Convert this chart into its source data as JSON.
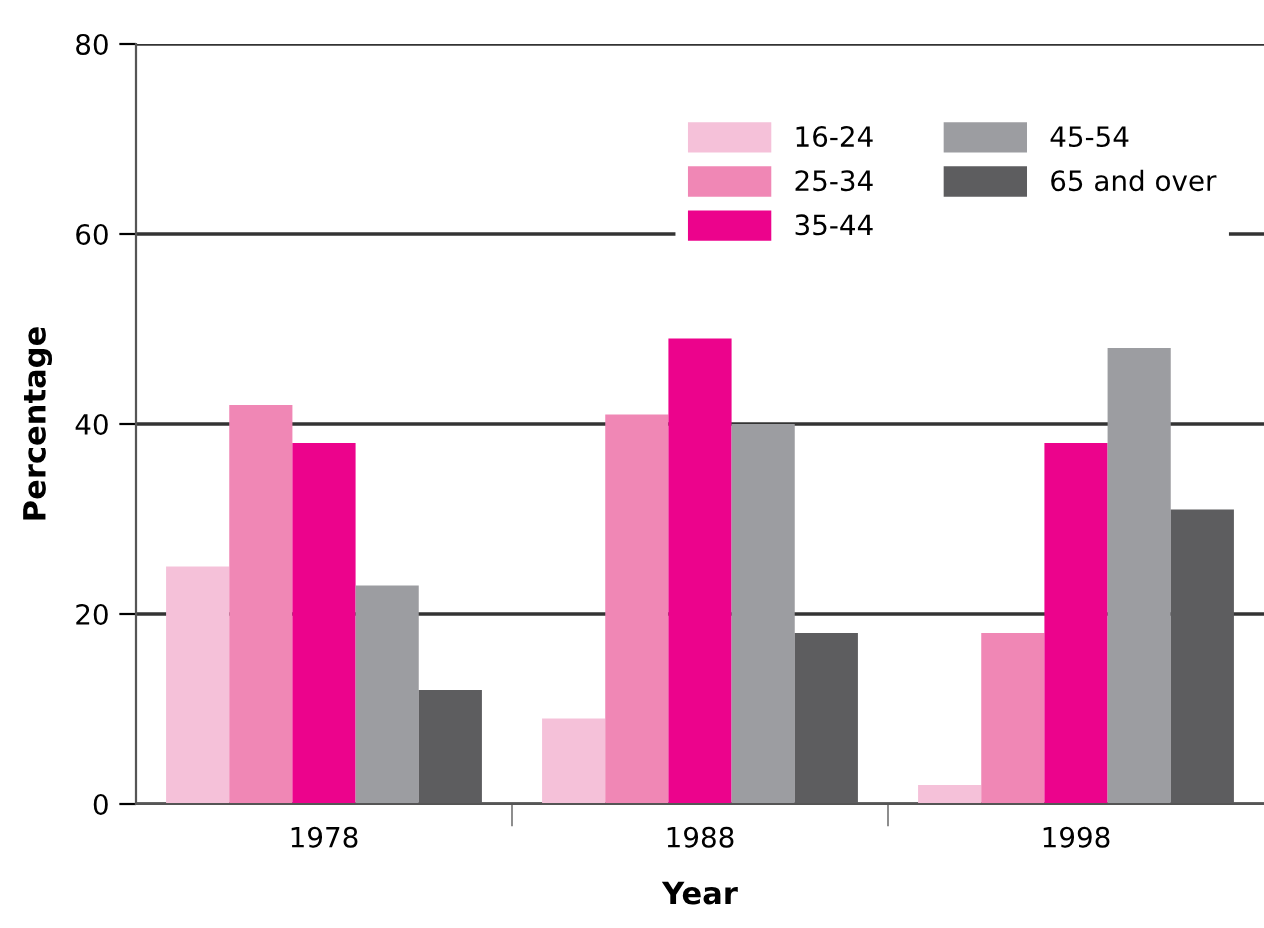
{
  "chart_data": {
    "type": "bar",
    "xlabel": "Year",
    "ylabel": "Percentage",
    "categories": [
      "1978",
      "1988",
      "1998"
    ],
    "series": [
      {
        "name": "16-24",
        "color": "#f5c1d9",
        "values": [
          25,
          9,
          2
        ]
      },
      {
        "name": "25-34",
        "color": "#f087b5",
        "values": [
          42,
          41,
          18
        ]
      },
      {
        "name": "35-44",
        "color": "#ec038c",
        "values": [
          38,
          49,
          38
        ]
      },
      {
        "name": "45-54",
        "color": "#9c9da1",
        "values": [
          23,
          40,
          48
        ]
      },
      {
        "name": "65 and over",
        "color": "#5d5d5f",
        "values": [
          12,
          18,
          31
        ]
      }
    ],
    "ylim": [
      0,
      80
    ],
    "yticks": [
      0,
      20,
      40,
      60,
      80
    ],
    "grid": "y",
    "legend": "top right"
  }
}
